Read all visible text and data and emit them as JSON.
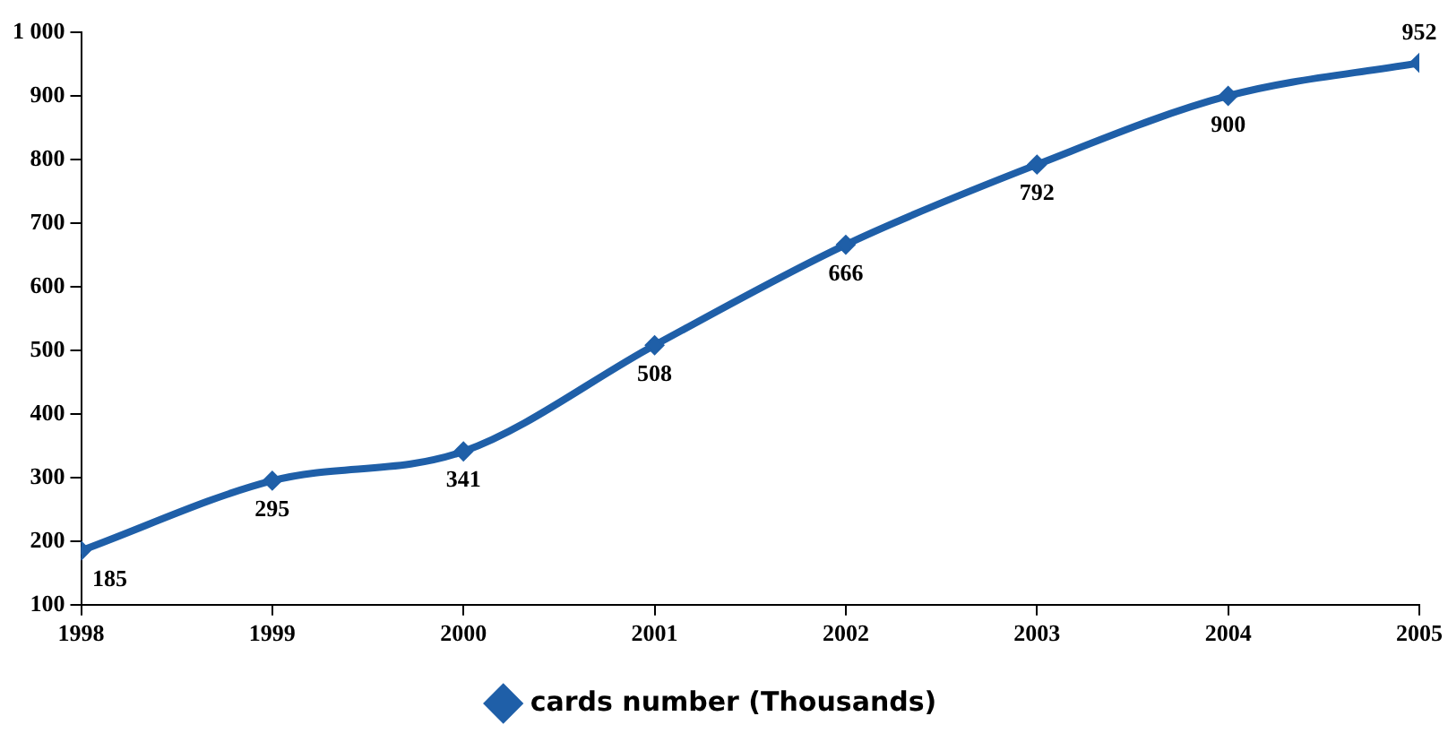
{
  "chart_data": {
    "type": "line",
    "x": [
      1998,
      1999,
      2000,
      2001,
      2002,
      2003,
      2004,
      2005
    ],
    "series": [
      {
        "name": "cards number (Thousands)",
        "color": "#1f5fa8",
        "values": [
          185,
          295,
          341,
          508,
          666,
          792,
          900,
          952
        ]
      }
    ],
    "xlim": [
      1998,
      2005
    ],
    "xticks": [
      1998,
      1999,
      2000,
      2001,
      2002,
      2003,
      2004,
      2005
    ],
    "ylim": [
      100,
      1000
    ],
    "yticks": [
      100,
      200,
      300,
      400,
      500,
      600,
      700,
      800,
      900,
      {
        "value": 1000,
        "label": "1 000"
      }
    ],
    "grid": false,
    "legend": "bottom",
    "marker": "diamond",
    "line_style": "solid",
    "data_labels": true
  }
}
